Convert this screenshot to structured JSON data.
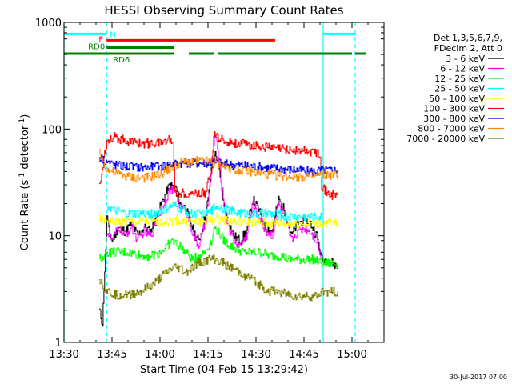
{
  "chart_data": {
    "type": "line",
    "title": "HESSI Observing Summary Count Rates",
    "xlabel": "Start Time (04-Feb-15 13:29:42)",
    "ylabel_main": "Count Rate (s",
    "ylabel_sup1": "-1",
    "ylabel_mid": " detector",
    "ylabel_sup2": "-1",
    "ylabel_end": ")",
    "yscale": "log",
    "ylim": [
      1,
      1000
    ],
    "xlim": [
      "13:30",
      "15:10"
    ],
    "x_ticks": [
      {
        "label": "13:30",
        "min": 0
      },
      {
        "label": "13:45",
        "min": 15
      },
      {
        "label": "14:00",
        "min": 30
      },
      {
        "label": "14:15",
        "min": 45
      },
      {
        "label": "14:30",
        "min": 60
      },
      {
        "label": "14:45",
        "min": 75
      },
      {
        "label": "15:00",
        "min": 90
      }
    ],
    "y_ticks": [
      {
        "label": "1",
        "value": 1
      },
      {
        "label": "10",
        "value": 10
      },
      {
        "label": "100",
        "value": 100
      },
      {
        "label": "1000",
        "value": 1000
      }
    ],
    "legend": {
      "header": [
        "Det 1,3,5,6,7,9,",
        "FDecim 2, Att 0"
      ],
      "entries": [
        {
          "label": "3 - 6 keV",
          "color": "#000000"
        },
        {
          "label": "6 - 12 keV",
          "color": "#ff00ff"
        },
        {
          "label": "12 - 25 keV",
          "color": "#00ff00"
        },
        {
          "label": "25 - 50 keV",
          "color": "#00ffff"
        },
        {
          "label": "50 - 100 keV",
          "color": "#ffff00"
        },
        {
          "label": "100 - 300 keV",
          "color": "#ff0000"
        },
        {
          "label": "300 - 800 keV",
          "color": "#0000ff"
        },
        {
          "label": "800 - 7000 keV",
          "color": "#ff8c00"
        },
        {
          "label": "7000 - 20000 keV",
          "color": "#808000"
        }
      ]
    },
    "flags": [
      {
        "label": "N",
        "color": "#00ffff",
        "y": 780,
        "segments": [
          [
            0,
            13.3
          ],
          [
            81,
            91
          ]
        ]
      },
      {
        "label": "F",
        "color": "#ff0000",
        "y": 680,
        "segments": [
          [
            13.3,
            66
          ]
        ]
      },
      {
        "label": "RD0",
        "color": "#008000",
        "y": 580,
        "segments": [
          [
            13.3,
            34.5
          ]
        ]
      },
      {
        "label": "RD6",
        "color": "#008000",
        "y": 510,
        "segments": [
          [
            0,
            34.5
          ],
          [
            39,
            47
          ],
          [
            48,
            81
          ],
          [
            81,
            90
          ],
          [
            91,
            94.5
          ]
        ]
      }
    ],
    "vlines": [
      {
        "min": 0,
        "color": "#00ffff",
        "style": "solid"
      },
      {
        "min": 13.3,
        "color": "#00ffff",
        "style": "dashed"
      },
      {
        "min": 81,
        "color": "#00ffff",
        "style": "solid"
      },
      {
        "min": 91,
        "color": "#00ffff",
        "style": "dashed"
      }
    ],
    "series": [
      {
        "name": "3 - 6 keV",
        "color": "#000000",
        "x": [
          11,
          12,
          13.4,
          14,
          15,
          17,
          19,
          21,
          23,
          25,
          27,
          29,
          31,
          33,
          35,
          36,
          38,
          40,
          41,
          42,
          43,
          44,
          45,
          46,
          47,
          48,
          49,
          50,
          51,
          52,
          53,
          55,
          57,
          59,
          61,
          63,
          65,
          67,
          69,
          71,
          73,
          75,
          77,
          79,
          80.5,
          82,
          84,
          85.5
        ],
        "y": [
          2,
          1.5,
          15,
          11,
          9,
          12,
          11,
          13,
          10,
          12,
          11,
          16,
          22,
          30,
          28,
          20,
          18,
          12,
          10,
          9,
          11,
          15,
          22,
          40,
          60,
          50,
          30,
          18,
          15,
          12,
          10,
          9,
          11,
          22,
          17,
          12,
          11,
          22,
          17,
          10,
          13,
          14,
          13,
          10,
          6,
          6,
          5.5,
          5
        ]
      },
      {
        "name": "6 - 12 keV",
        "color": "#ff00ff",
        "x": [
          13.4,
          15,
          17,
          19,
          21,
          23,
          25,
          27,
          29,
          31,
          33,
          35,
          36,
          38,
          40,
          41,
          42,
          43,
          44,
          45,
          46,
          47,
          48,
          49,
          50,
          51,
          52,
          53,
          55,
          57,
          59,
          61,
          63,
          65,
          67,
          69,
          71,
          73,
          75,
          77,
          79,
          80.5
        ],
        "y": [
          11,
          9,
          12,
          10,
          12,
          9,
          11,
          10,
          14,
          20,
          27,
          26,
          19,
          17,
          11,
          9,
          8,
          10,
          13,
          20,
          38,
          90,
          65,
          35,
          20,
          14,
          11,
          9,
          8,
          10,
          20,
          15,
          11,
          10,
          20,
          15,
          9,
          11,
          12,
          11,
          9,
          6
        ]
      },
      {
        "name": "12 - 25 keV",
        "color": "#00ff00",
        "x": [
          11,
          13.4,
          16,
          20,
          24,
          28,
          30,
          32,
          34,
          36,
          38,
          40,
          42,
          44,
          46,
          47,
          48,
          50,
          52,
          54,
          56,
          58,
          60,
          62,
          64,
          66,
          68,
          70,
          72,
          74,
          76,
          78,
          80.5,
          82,
          84,
          85.5
        ],
        "y": [
          6,
          7,
          7,
          7,
          6.5,
          6.5,
          7,
          8,
          9,
          8,
          7,
          6,
          6.5,
          7,
          9,
          12,
          11,
          9,
          8,
          7.5,
          7,
          7,
          7,
          7,
          6.5,
          6.5,
          6.5,
          6,
          6,
          6,
          6,
          6,
          5.5,
          5.5,
          5.5,
          5.5
        ]
      },
      {
        "name": "25 - 50 keV",
        "color": "#00ffff",
        "x": [
          13.4,
          16,
          20,
          24,
          28,
          30,
          32,
          34,
          36,
          38,
          40,
          42,
          44,
          46,
          47,
          48,
          50,
          52,
          55,
          58,
          61,
          64,
          67,
          70,
          73,
          76,
          79,
          80.5
        ],
        "y": [
          19,
          17,
          16,
          16,
          16,
          17,
          18,
          19,
          18,
          17,
          16,
          16,
          16,
          17,
          19,
          19,
          18,
          17,
          16.5,
          16,
          16,
          16,
          15.5,
          15,
          15,
          15,
          15,
          15
        ]
      },
      {
        "name": "50 - 100 keV",
        "color": "#ffff00",
        "x": [
          11,
          13.4,
          16,
          20,
          24,
          28,
          32,
          35,
          38,
          42,
          46,
          47,
          50,
          54,
          58,
          62,
          66,
          70,
          74,
          78,
          80.5,
          82,
          84,
          85.5
        ],
        "y": [
          14,
          14,
          13.5,
          13.5,
          13.5,
          13.5,
          13.5,
          14,
          13.5,
          13.5,
          14,
          14.5,
          14,
          13.5,
          13.5,
          13,
          13,
          13,
          13,
          13,
          13,
          13,
          13,
          13
        ]
      },
      {
        "name": "100 - 300 keV",
        "color": "#ff0000",
        "x": [
          11,
          13.4,
          15,
          18,
          22,
          26,
          30,
          34,
          34.6,
          36,
          40,
          44,
          46,
          47,
          47.5,
          49,
          52,
          56,
          60,
          64,
          68,
          72,
          76,
          80,
          80.5,
          82,
          84,
          85.5
        ],
        "y": [
          28,
          80,
          85,
          80,
          75,
          73,
          75,
          82,
          25,
          25,
          25,
          25,
          40,
          100,
          85,
          80,
          75,
          72,
          70,
          67,
          65,
          63,
          62,
          60,
          30,
          25,
          24,
          24
        ]
      },
      {
        "name": "300 - 800 keV",
        "color": "#0000ff",
        "x": [
          11,
          13.4,
          15,
          18,
          22,
          26,
          30,
          34,
          36,
          40,
          44,
          47,
          50,
          54,
          58,
          62,
          66,
          70,
          74,
          78,
          80.5,
          82,
          84,
          85.5
        ],
        "y": [
          55,
          50,
          47,
          45,
          44,
          44,
          45,
          47,
          48,
          48,
          48,
          48,
          47,
          46,
          45,
          44,
          43,
          42,
          41,
          40,
          41,
          41,
          41,
          41
        ]
      },
      {
        "name": "800 - 7000 keV",
        "color": "#ff8c00",
        "x": [
          11,
          13.4,
          15,
          18,
          22,
          26,
          30,
          34,
          36,
          40,
          44,
          47,
          50,
          54,
          58,
          62,
          66,
          70,
          74,
          78,
          80.5,
          82,
          84,
          85.5
        ],
        "y": [
          60,
          42,
          40,
          37,
          35,
          35,
          38,
          44,
          48,
          50,
          50,
          48,
          45,
          42,
          40,
          38,
          37,
          36,
          36,
          36,
          37,
          37,
          37,
          37
        ]
      },
      {
        "name": "7000 - 20000 keV",
        "color": "#808000",
        "x": [
          11,
          13.4,
          16,
          20,
          24,
          28,
          30,
          32,
          34,
          36,
          38,
          40,
          42,
          44,
          46,
          47,
          48,
          50,
          52,
          55,
          58,
          61,
          64,
          67,
          70,
          73,
          76,
          79,
          80.5,
          82,
          84,
          85.5
        ],
        "y": [
          4,
          3,
          2.8,
          2.8,
          3,
          3.5,
          4,
          4.5,
          5,
          5,
          4.5,
          5,
          5.5,
          5.8,
          6,
          6,
          5.8,
          5.5,
          5,
          4.5,
          4,
          3.5,
          3,
          3,
          2.8,
          2.7,
          2.7,
          2.7,
          3,
          3,
          3,
          3
        ]
      }
    ],
    "footer_date": "30-Jul-2017 07:00"
  }
}
